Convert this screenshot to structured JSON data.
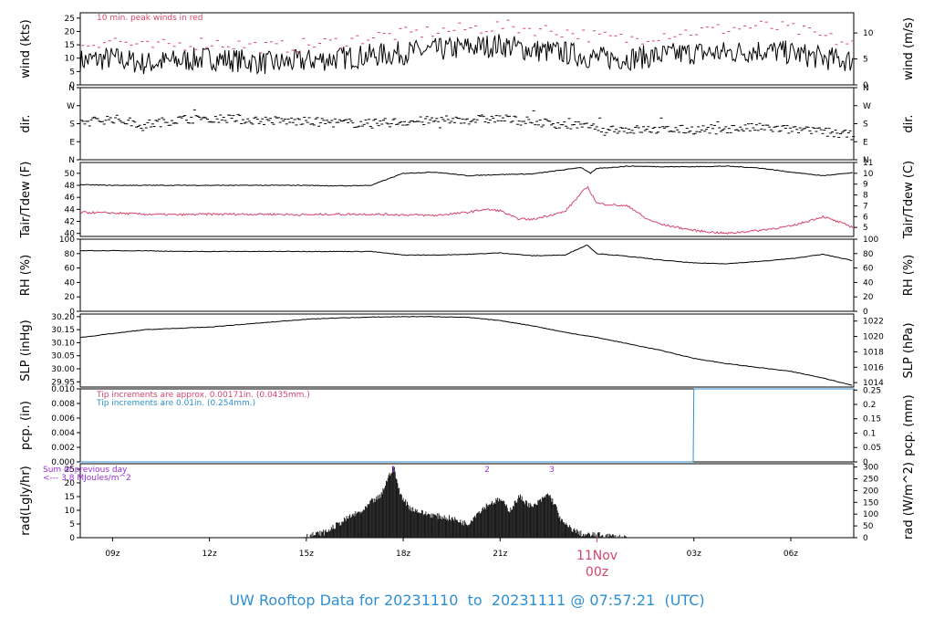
{
  "title": "UW Rooftop Data for 20231110  to  20231111 @ 07:57:21  (UTC)",
  "colors": {
    "red": "#d6456b",
    "blue": "#2e8fd0",
    "purple": "#9b30d9",
    "black": "#000000"
  },
  "x_axis": {
    "range_hours": [
      8.0,
      31.95
    ],
    "ticks": [
      {
        "hour": 9,
        "label": "09z"
      },
      {
        "hour": 12,
        "label": "12z"
      },
      {
        "hour": 15,
        "label": "15z"
      },
      {
        "hour": 18,
        "label": "18z"
      },
      {
        "hour": 21,
        "label": "21z"
      },
      {
        "hour": 27,
        "label": "03z"
      },
      {
        "hour": 30,
        "label": "06z"
      }
    ],
    "day_marker": {
      "hour": 24,
      "label1": "11Nov",
      "label2": "00z"
    }
  },
  "chart_data": [
    {
      "id": "wind",
      "type": "line",
      "ylabel": "wind (kts)",
      "ylabel_right": "wind (m/s)",
      "ylim": [
        0,
        27
      ],
      "yticks": [
        {
          "v": 0,
          "l": "0"
        },
        {
          "v": 5,
          "l": "5"
        },
        {
          "v": 10,
          "l": "10"
        },
        {
          "v": 15,
          "l": "15"
        },
        {
          "v": 20,
          "l": "20"
        },
        {
          "v": 25,
          "l": "25"
        }
      ],
      "yticks_right": [
        {
          "v": 0,
          "l": "0"
        },
        {
          "v": 9.72,
          "l": "5"
        },
        {
          "v": 19.44,
          "l": "10"
        }
      ],
      "annotation": "10 min. peak winds in red",
      "series": [
        {
          "role": "mean",
          "x": [
            8,
            9,
            10,
            11,
            12,
            13,
            14,
            15,
            16,
            17,
            18,
            19,
            20,
            21,
            22,
            23,
            24,
            25,
            26,
            27,
            28,
            29,
            30,
            31,
            31.95
          ],
          "y": [
            9,
            10,
            8,
            9,
            10,
            9,
            8,
            9,
            10,
            11,
            12,
            13,
            14,
            15,
            13,
            12,
            10,
            10,
            11,
            12,
            12,
            13,
            12,
            10,
            9
          ]
        },
        {
          "role": "peak",
          "x": [
            8,
            9,
            10,
            11,
            12,
            13,
            14,
            15,
            16,
            17,
            18,
            19,
            20,
            21,
            22,
            23,
            24,
            25,
            26,
            27,
            28,
            29,
            30,
            31,
            31.95
          ],
          "y": [
            15,
            17,
            14,
            15,
            16,
            15,
            14,
            15,
            16,
            18,
            19,
            20,
            21,
            22,
            21,
            20,
            18,
            17,
            19,
            20,
            21,
            22,
            21,
            18,
            15
          ]
        }
      ]
    },
    {
      "id": "dir",
      "type": "scatter",
      "ylabel": "dir.",
      "ylabel_right": "dir.",
      "ylim": [
        0,
        360
      ],
      "yticks": [
        {
          "v": 0,
          "l": "N"
        },
        {
          "v": 90,
          "l": "E"
        },
        {
          "v": 180,
          "l": "S"
        },
        {
          "v": 270,
          "l": "W"
        },
        {
          "v": 360,
          "l": "N"
        }
      ],
      "yticks_right": [
        {
          "v": 0,
          "l": "N"
        },
        {
          "v": 90,
          "l": "E"
        },
        {
          "v": 180,
          "l": "S"
        },
        {
          "v": 270,
          "l": "W"
        },
        {
          "v": 360,
          "l": "N"
        }
      ],
      "series": [
        {
          "x": [
            8,
            9,
            10,
            11,
            12,
            13,
            14,
            15,
            16,
            17,
            18,
            19,
            20,
            21,
            22,
            23,
            24,
            25,
            26,
            27,
            28,
            29,
            30,
            31,
            31.95
          ],
          "y": [
            185,
            205,
            175,
            200,
            210,
            200,
            195,
            190,
            185,
            180,
            190,
            195,
            200,
            205,
            190,
            175,
            160,
            150,
            150,
            150,
            155,
            160,
            150,
            140,
            120
          ]
        }
      ]
    },
    {
      "id": "temp",
      "type": "line",
      "ylabel": "Tair/Tdew (F)",
      "ylabel_right": "Tair/Tdew (C)",
      "ylim": [
        39.5,
        51.8
      ],
      "yticks": [
        {
          "v": 40,
          "l": "40"
        },
        {
          "v": 42,
          "l": "42"
        },
        {
          "v": 44,
          "l": "44"
        },
        {
          "v": 46,
          "l": "46"
        },
        {
          "v": 48,
          "l": "48"
        },
        {
          "v": 50,
          "l": "50"
        }
      ],
      "yticks_right": [
        {
          "v": 41,
          "l": "5"
        },
        {
          "v": 42.8,
          "l": "6"
        },
        {
          "v": 44.6,
          "l": "7"
        },
        {
          "v": 46.4,
          "l": "8"
        },
        {
          "v": 48.2,
          "l": "9"
        },
        {
          "v": 50,
          "l": "10"
        },
        {
          "v": 51.8,
          "l": "11"
        }
      ],
      "series": [
        {
          "role": "air",
          "x": [
            8,
            9,
            10,
            11,
            12,
            13,
            14,
            15,
            16,
            17,
            17.5,
            18,
            19,
            20,
            21,
            22,
            23,
            23.5,
            23.8,
            24,
            25,
            26,
            27,
            28,
            29,
            30,
            31,
            31.95
          ],
          "y": [
            48.1,
            48.0,
            48.0,
            48.0,
            48.0,
            48.0,
            48.0,
            48.0,
            47.9,
            48.0,
            49.0,
            50.0,
            50.2,
            49.6,
            49.8,
            49.9,
            50.6,
            51.0,
            50.0,
            50.8,
            51.2,
            51.1,
            51.1,
            51.2,
            50.9,
            50.2,
            49.6,
            50.1
          ]
        },
        {
          "role": "dew",
          "x": [
            8,
            9,
            10,
            11,
            12,
            13,
            14,
            15,
            16,
            17,
            18,
            19,
            20,
            20.5,
            21,
            21.5,
            22,
            22.5,
            23,
            23.7,
            24,
            25,
            25.5,
            26,
            27,
            28,
            29,
            30,
            31,
            31.95
          ],
          "y": [
            43.5,
            43.4,
            43.2,
            43.1,
            43.2,
            43.2,
            43.2,
            43.1,
            43.2,
            43.2,
            43.1,
            43.0,
            43.5,
            44.0,
            43.8,
            42.5,
            42.3,
            43.0,
            43.6,
            47.8,
            45.0,
            44.5,
            42.5,
            41.5,
            40.5,
            40.0,
            40.5,
            41.2,
            42.8,
            41.0
          ]
        }
      ]
    },
    {
      "id": "rh",
      "type": "line",
      "ylabel": "RH (%)",
      "ylabel_right": "RH (%)",
      "ylim": [
        0,
        100
      ],
      "yticks": [
        {
          "v": 0,
          "l": "0"
        },
        {
          "v": 20,
          "l": "20"
        },
        {
          "v": 40,
          "l": "40"
        },
        {
          "v": 60,
          "l": "60"
        },
        {
          "v": 80,
          "l": "80"
        },
        {
          "v": 100,
          "l": "100"
        }
      ],
      "yticks_right": [
        {
          "v": 0,
          "l": "0"
        },
        {
          "v": 20,
          "l": "20"
        },
        {
          "v": 40,
          "l": "40"
        },
        {
          "v": 60,
          "l": "60"
        },
        {
          "v": 80,
          "l": "80"
        },
        {
          "v": 100,
          "l": "100"
        }
      ],
      "series": [
        {
          "x": [
            8,
            9,
            10,
            11,
            12,
            13,
            14,
            15,
            16,
            17,
            18,
            19,
            20,
            21,
            22,
            23,
            23.7,
            24,
            25,
            26,
            27,
            28,
            29,
            30,
            31,
            31.95
          ],
          "y": [
            84,
            84,
            84,
            83,
            83,
            83,
            83,
            83,
            83,
            83,
            78,
            78,
            79,
            81,
            77,
            78,
            92,
            80,
            76,
            71,
            67,
            66,
            69,
            73,
            79,
            70
          ]
        }
      ]
    },
    {
      "id": "slp",
      "type": "line",
      "ylabel": "SLP (inHg)",
      "ylabel_right": "SLP (hPa)",
      "ylim": [
        29.93,
        30.21
      ],
      "yticks": [
        {
          "v": 29.95,
          "l": "29.95"
        },
        {
          "v": 30.0,
          "l": "30.00"
        },
        {
          "v": 30.05,
          "l": "30.05"
        },
        {
          "v": 30.1,
          "l": "30.10"
        },
        {
          "v": 30.15,
          "l": "30.15"
        },
        {
          "v": 30.2,
          "l": "30.20"
        }
      ],
      "yticks_right": [
        {
          "v": 29.947,
          "l": "1014"
        },
        {
          "v": 30.006,
          "l": "1016"
        },
        {
          "v": 30.065,
          "l": "1018"
        },
        {
          "v": 30.124,
          "l": "1020"
        },
        {
          "v": 30.183,
          "l": "1022"
        }
      ],
      "series": [
        {
          "x": [
            8,
            9,
            10,
            11,
            12,
            13,
            14,
            15,
            16,
            17,
            18,
            19,
            20,
            21,
            22,
            23,
            24,
            25,
            26,
            27,
            28,
            29,
            30,
            31,
            31.95
          ],
          "y": [
            30.12,
            30.135,
            30.15,
            30.155,
            30.16,
            30.17,
            30.18,
            30.19,
            30.195,
            30.198,
            30.2,
            30.2,
            30.197,
            30.185,
            30.165,
            30.14,
            30.12,
            30.095,
            30.07,
            30.04,
            30.02,
            30.005,
            29.99,
            29.965,
            29.935
          ]
        }
      ]
    },
    {
      "id": "pcp",
      "type": "line",
      "ylabel": "pcp. (in)",
      "ylabel_right": "pcp. (mm)",
      "ylim": [
        0,
        0.01
      ],
      "yticks": [
        {
          "v": 0,
          "l": "0.000"
        },
        {
          "v": 0.002,
          "l": "0.002"
        },
        {
          "v": 0.004,
          "l": "0.004"
        },
        {
          "v": 0.006,
          "l": "0.006"
        },
        {
          "v": 0.008,
          "l": "0.008"
        },
        {
          "v": 0.01,
          "l": "0.010"
        }
      ],
      "yticks_right": [
        {
          "v": 0,
          "l": "0"
        },
        {
          "v": 0.00197,
          "l": "0.05"
        },
        {
          "v": 0.00394,
          "l": "0.1"
        },
        {
          "v": 0.00591,
          "l": "0.15"
        },
        {
          "v": 0.00787,
          "l": "0.2"
        },
        {
          "v": 0.00984,
          "l": "0.25"
        }
      ],
      "notes": [
        {
          "text": "Tip increments are approx. 0.00171in. (0.0435mm.)",
          "color": "red"
        },
        {
          "text": "Tip increments are 0.01in. (0.254mm.)",
          "color": "blue"
        }
      ],
      "series": [
        {
          "x": [
            8,
            26.98,
            27.0,
            31.95
          ],
          "y": [
            0,
            0,
            0.01,
            0.01
          ]
        }
      ]
    },
    {
      "id": "rad",
      "type": "area",
      "ylabel": "rad(Lgly/hr)",
      "ylabel_right": "rad (W/m^2)",
      "ylim": [
        0,
        27
      ],
      "yticks": [
        {
          "v": 0,
          "l": "0"
        },
        {
          "v": 5,
          "l": "5"
        },
        {
          "v": 10,
          "l": "10"
        },
        {
          "v": 15,
          "l": "15"
        },
        {
          "v": 20,
          "l": "20"
        },
        {
          "v": 25,
          "l": "25"
        }
      ],
      "yticks_right": [
        {
          "v": 0,
          "l": "0"
        },
        {
          "v": 4.3,
          "l": "50"
        },
        {
          "v": 8.6,
          "l": "100"
        },
        {
          "v": 12.9,
          "l": "150"
        },
        {
          "v": 17.2,
          "l": "200"
        },
        {
          "v": 21.5,
          "l": "250"
        },
        {
          "v": 25.8,
          "l": "300"
        }
      ],
      "notes": [
        {
          "text": "Sum of previous day",
          "color": "purple"
        },
        {
          "text": "<--- 3.8 MJoules/m^2",
          "color": "purple"
        }
      ],
      "markers": [
        {
          "hour": 17.7,
          "label": "1"
        },
        {
          "hour": 20.6,
          "label": "2"
        },
        {
          "hour": 22.6,
          "label": "3"
        }
      ],
      "series": [
        {
          "x": [
            14.8,
            15.2,
            15.6,
            16.0,
            16.4,
            16.8,
            17.0,
            17.3,
            17.5,
            17.7,
            17.9,
            18.2,
            18.6,
            19.0,
            19.5,
            20.0,
            20.3,
            20.6,
            21.0,
            21.3,
            21.6,
            22.0,
            22.3,
            22.5,
            22.7,
            22.9,
            23.1,
            23.4,
            23.6,
            24.0,
            24.5,
            24.9
          ],
          "y": [
            0,
            1,
            2,
            5,
            8,
            10,
            13,
            15,
            21,
            26,
            16,
            11,
            9,
            8,
            7,
            5,
            9,
            12,
            14,
            10,
            15,
            11,
            14,
            16,
            12,
            6,
            4,
            2,
            1,
            1,
            0.5,
            0
          ]
        }
      ]
    }
  ]
}
